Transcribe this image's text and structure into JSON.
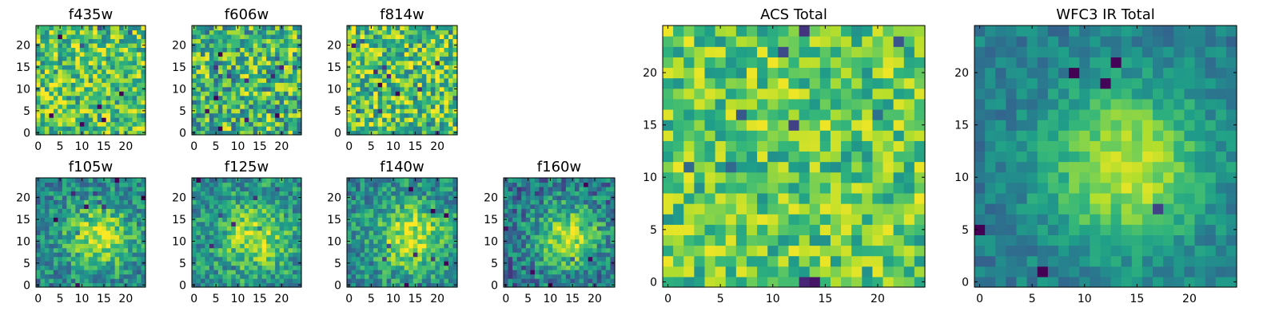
{
  "chart_data": {
    "type": "heatmap",
    "colormap": "viridis",
    "grid": false,
    "panels": [
      {
        "id": "f435w",
        "title": "f435w",
        "xlim": [
          0,
          24
        ],
        "ylim": [
          0,
          24
        ],
        "xticks": [
          0,
          5,
          10,
          15,
          20
        ],
        "yticks": [
          0,
          5,
          10,
          15,
          20
        ],
        "profile": "noise",
        "seed": 11,
        "level": 0.72,
        "noise": 0.3
      },
      {
        "id": "f606w",
        "title": "f606w",
        "xlim": [
          0,
          24
        ],
        "ylim": [
          0,
          24
        ],
        "xticks": [
          0,
          5,
          10,
          15,
          20
        ],
        "yticks": [
          0,
          5,
          10,
          15,
          20
        ],
        "profile": "noise",
        "seed": 23,
        "level": 0.66,
        "noise": 0.34
      },
      {
        "id": "f814w",
        "title": "f814w",
        "xlim": [
          0,
          24
        ],
        "ylim": [
          0,
          24
        ],
        "xticks": [
          0,
          5,
          10,
          15,
          20
        ],
        "yticks": [
          0,
          5,
          10,
          15,
          20
        ],
        "profile": "noise",
        "seed": 37,
        "level": 0.72,
        "noise": 0.32
      },
      {
        "id": "f105w",
        "title": "f105w",
        "xlim": [
          0,
          24
        ],
        "ylim": [
          0,
          24
        ],
        "xticks": [
          0,
          5,
          10,
          15,
          20
        ],
        "yticks": [
          0,
          5,
          10,
          15,
          20
        ],
        "profile": "blob",
        "seed": 41,
        "level": 0.45,
        "peak": 0.45,
        "noise": 0.22
      },
      {
        "id": "f125w",
        "title": "f125w",
        "xlim": [
          0,
          24
        ],
        "ylim": [
          0,
          24
        ],
        "xticks": [
          0,
          5,
          10,
          15,
          20
        ],
        "yticks": [
          0,
          5,
          10,
          15,
          20
        ],
        "profile": "blob",
        "seed": 53,
        "level": 0.5,
        "peak": 0.4,
        "noise": 0.22
      },
      {
        "id": "f140w",
        "title": "f140w",
        "xlim": [
          0,
          24
        ],
        "ylim": [
          0,
          24
        ],
        "xticks": [
          0,
          5,
          10,
          15,
          20
        ],
        "yticks": [
          0,
          5,
          10,
          15,
          20
        ],
        "profile": "blob",
        "seed": 67,
        "level": 0.48,
        "peak": 0.45,
        "noise": 0.22
      },
      {
        "id": "f160w",
        "title": "f160w",
        "xlim": [
          0,
          24
        ],
        "ylim": [
          0,
          24
        ],
        "xticks": [
          0,
          5,
          10,
          15,
          20
        ],
        "yticks": [
          0,
          5,
          10,
          15,
          20
        ],
        "profile": "blob",
        "seed": 79,
        "level": 0.38,
        "peak": 0.5,
        "noise": 0.24
      },
      {
        "id": "acs_total",
        "title": "ACS Total",
        "xlim": [
          0,
          24
        ],
        "ylim": [
          0,
          24
        ],
        "xticks": [
          0,
          5,
          10,
          15,
          20
        ],
        "yticks": [
          0,
          5,
          10,
          15,
          20
        ],
        "profile": "noise",
        "seed": 97,
        "level": 0.74,
        "noise": 0.24
      },
      {
        "id": "wfc3_ir_total",
        "title": "WFC3 IR Total",
        "xlim": [
          0,
          24
        ],
        "ylim": [
          0,
          24
        ],
        "xticks": [
          0,
          5,
          10,
          15,
          20
        ],
        "yticks": [
          0,
          5,
          10,
          15,
          20
        ],
        "profile": "blob",
        "seed": 113,
        "level": 0.42,
        "peak": 0.5,
        "noise": 0.12
      }
    ]
  }
}
